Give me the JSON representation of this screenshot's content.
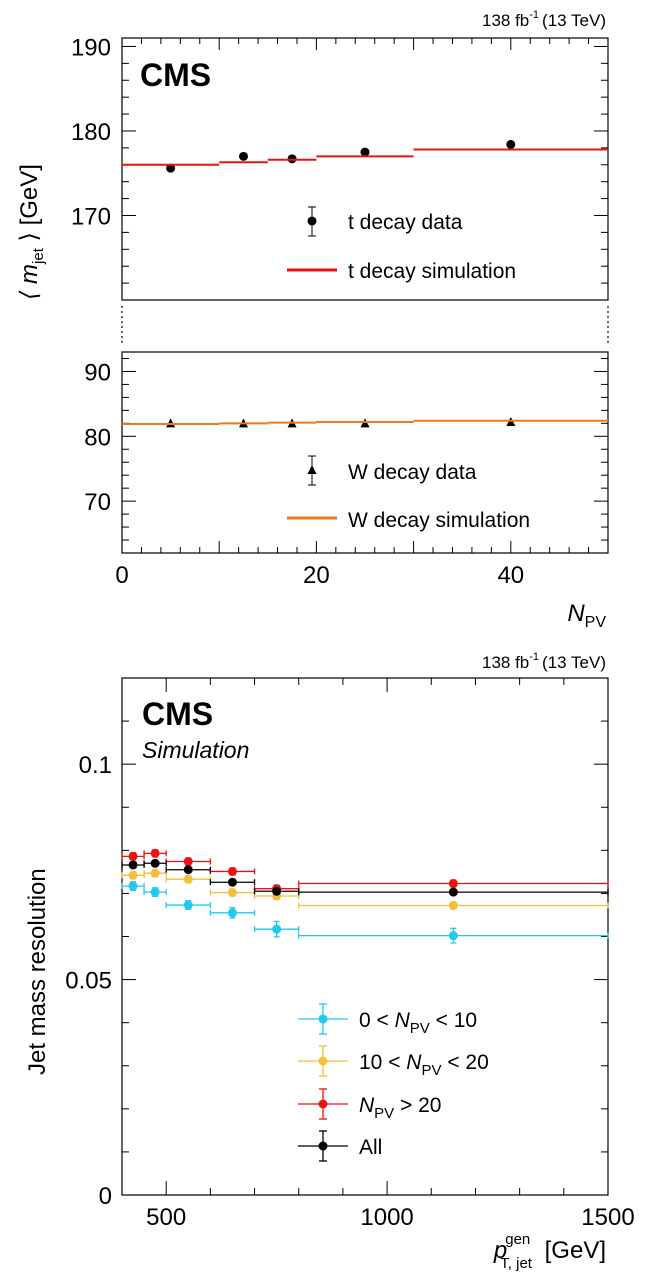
{
  "chart_data": [
    {
      "type": "scatter",
      "experiment": "CMS",
      "lumi_label": "138 fb",
      "lumi_exp": "-1",
      "lumi_energy": "(13 TeV)",
      "xlabel_main": "N",
      "xlabel_sub": "PV",
      "ylabel_pre": "⟨ m",
      "ylabel_sub": "jet",
      "ylabel_post": " ⟩ [GeV]",
      "xlim": [
        0,
        50
      ],
      "broken_y_axis": true,
      "upper_ylim": [
        160,
        191
      ],
      "lower_ylim": [
        62,
        93
      ],
      "x_ticks": [
        0,
        20,
        40
      ],
      "upper_y_ticks": [
        170,
        180,
        190
      ],
      "lower_y_ticks": [
        70,
        80,
        90
      ],
      "series": [
        {
          "name": "t decay data",
          "kind": "points",
          "marker": "circle",
          "color": "#000000",
          "x": [
            5,
            12.5,
            17.5,
            25,
            40
          ],
          "y": [
            175.6,
            177.0,
            176.7,
            177.5,
            178.4
          ]
        },
        {
          "name": "t decay simulation",
          "kind": "steps",
          "color": "#ee1111",
          "bins": [
            [
              0,
              10
            ],
            [
              10,
              15
            ],
            [
              15,
              20
            ],
            [
              20,
              30
            ],
            [
              30,
              50
            ]
          ],
          "y": [
            176.0,
            176.3,
            176.6,
            177.0,
            177.8
          ]
        },
        {
          "name": "W decay data",
          "kind": "points",
          "marker": "triangle",
          "color": "#000000",
          "x": [
            5,
            12.5,
            17.5,
            25,
            40
          ],
          "y": [
            82.0,
            82.0,
            82.0,
            82.0,
            82.2
          ]
        },
        {
          "name": "W decay simulation",
          "kind": "steps",
          "color": "#f07818",
          "bins": [
            [
              0,
              10
            ],
            [
              10,
              15
            ],
            [
              15,
              20
            ],
            [
              20,
              30
            ],
            [
              30,
              50
            ]
          ],
          "y": [
            81.9,
            82.0,
            82.1,
            82.2,
            82.4
          ]
        }
      ],
      "legend": {
        "t_data": "t decay data",
        "t_sim": "t decay simulation",
        "w_data": "W decay data",
        "w_sim": "W decay simulation"
      }
    },
    {
      "type": "scatter",
      "experiment": "CMS",
      "experiment_sub": "Simulation",
      "lumi_label": "138 fb",
      "lumi_exp": "-1",
      "lumi_energy": "(13 TeV)",
      "ylabel": "Jet mass resolution",
      "xlabel_main": "p",
      "xlabel_sup": "gen",
      "xlabel_sub": "T, jet",
      "xlabel_unit": " [GeV]",
      "xlim": [
        400,
        1500
      ],
      "ylim": [
        0,
        0.12
      ],
      "x_ticks": [
        500,
        1000,
        1500
      ],
      "y_ticks": [
        0,
        0.05,
        0.1
      ],
      "y_tick_labels": [
        "0",
        "0.05",
        "0.1"
      ],
      "bins": [
        [
          400,
          450
        ],
        [
          450,
          500
        ],
        [
          500,
          600
        ],
        [
          600,
          700
        ],
        [
          700,
          800
        ],
        [
          800,
          1500
        ]
      ],
      "x_centers": [
        425,
        475,
        550,
        650,
        750,
        1150
      ],
      "series": [
        {
          "name": "0 < N_PV < 10",
          "color": "#22c8ee",
          "y": [
            0.0717,
            0.0703,
            0.0673,
            0.0655,
            0.0617,
            0.0602
          ],
          "err": [
            0.001,
            0.001,
            0.001,
            0.0012,
            0.0018,
            0.0017
          ]
        },
        {
          "name": "10 < N_PV < 20",
          "color": "#f5c038",
          "y": [
            0.0742,
            0.0747,
            0.0733,
            0.0702,
            0.0694,
            0.0672
          ],
          "err": [
            0.0008,
            0.0008,
            0.0008,
            0.0008,
            0.0008,
            0.0008
          ]
        },
        {
          "name": "N_PV > 20",
          "color": "#ee1111",
          "y": [
            0.0786,
            0.0793,
            0.0774,
            0.0751,
            0.0711,
            0.0723
          ],
          "err": [
            0.0008,
            0.0008,
            0.0008,
            0.0008,
            0.0008,
            0.0008
          ]
        },
        {
          "name": "All",
          "color": "#000000",
          "y": [
            0.0766,
            0.077,
            0.0755,
            0.0726,
            0.0705,
            0.0703
          ],
          "err": [
            0.0006,
            0.0006,
            0.0006,
            0.0006,
            0.0006,
            0.0006
          ]
        }
      ],
      "legend": [
        {
          "pre": "0 < ",
          "var": "N",
          "sub": "PV",
          "post": " < 10"
        },
        {
          "pre": "10 < ",
          "var": "N",
          "sub": "PV",
          "post": " < 20"
        },
        {
          "pre": "",
          "var": "N",
          "sub": "PV",
          "post": " > 20"
        },
        {
          "pre": "All",
          "var": "",
          "sub": "",
          "post": ""
        }
      ]
    }
  ]
}
